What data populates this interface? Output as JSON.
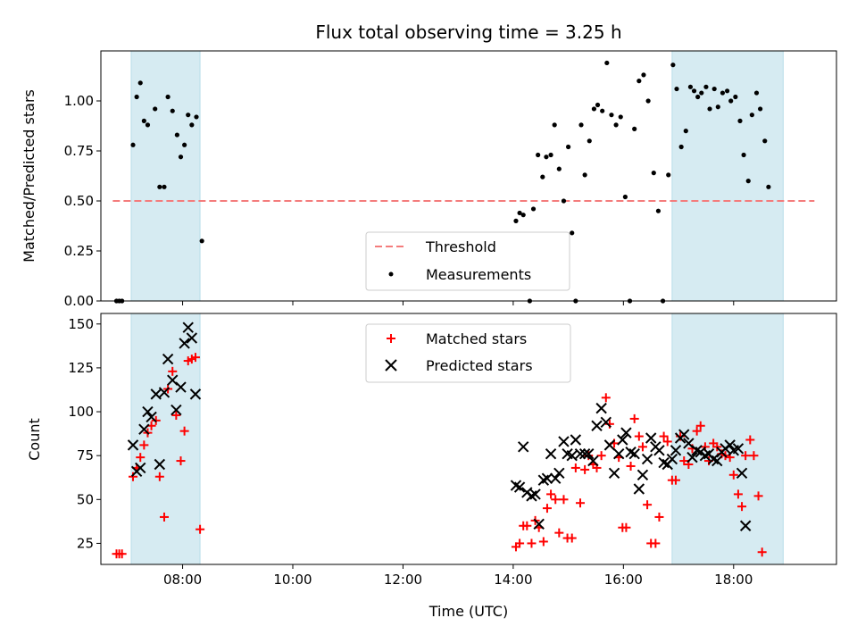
{
  "chart_data": [
    {
      "type": "scatter",
      "title": "Flux total observing time = 3.25 h",
      "xlabel": "",
      "ylabel": "Matched/Predicted stars",
      "xlim": [
        "06:31",
        "19:52"
      ],
      "ylim": [
        0,
        1.25
      ],
      "yticks": [
        0.0,
        0.25,
        0.5,
        0.75,
        1.0
      ],
      "ytick_labels": [
        "0.00",
        "0.25",
        "0.50",
        "0.75",
        "1.00"
      ],
      "xticks": [
        "08:00",
        "10:00",
        "12:00",
        "14:00",
        "16:00",
        "18:00"
      ],
      "grid": false,
      "legend_position": "bottom-center",
      "observing_windows": [
        [
          "07:04",
          "08:19"
        ],
        [
          "16:53",
          "18:54"
        ]
      ],
      "threshold": {
        "name": "Threshold",
        "value": 0.5,
        "color": "#f47c7c",
        "style": "dashed"
      },
      "series": [
        {
          "name": "Measurements",
          "color": "#000000",
          "marker": "dot",
          "points": [
            [
              "06:48",
              0.0
            ],
            [
              "06:51",
              0.0
            ],
            [
              "06:54",
              0.0
            ],
            [
              "07:06",
              0.78
            ],
            [
              "07:10",
              1.02
            ],
            [
              "07:14",
              1.09
            ],
            [
              "07:18",
              0.9
            ],
            [
              "07:22",
              0.88
            ],
            [
              "07:30",
              0.96
            ],
            [
              "07:35",
              0.57
            ],
            [
              "07:40",
              0.57
            ],
            [
              "07:44",
              1.02
            ],
            [
              "07:49",
              0.95
            ],
            [
              "07:54",
              0.83
            ],
            [
              "07:58",
              0.72
            ],
            [
              "08:02",
              0.78
            ],
            [
              "08:06",
              0.93
            ],
            [
              "08:10",
              0.88
            ],
            [
              "08:15",
              0.92
            ],
            [
              "08:21",
              0.3
            ],
            [
              "14:03",
              0.4
            ],
            [
              "14:07",
              0.44
            ],
            [
              "14:11",
              0.43
            ],
            [
              "14:18",
              0.0
            ],
            [
              "14:22",
              0.46
            ],
            [
              "14:27",
              0.73
            ],
            [
              "14:32",
              0.62
            ],
            [
              "14:36",
              0.72
            ],
            [
              "14:41",
              0.73
            ],
            [
              "14:45",
              0.88
            ],
            [
              "14:50",
              0.66
            ],
            [
              "14:55",
              0.5
            ],
            [
              "15:00",
              0.77
            ],
            [
              "15:04",
              0.34
            ],
            [
              "15:08",
              0.0
            ],
            [
              "15:14",
              0.88
            ],
            [
              "15:18",
              0.63
            ],
            [
              "15:23",
              0.8
            ],
            [
              "15:28",
              0.96
            ],
            [
              "15:32",
              0.98
            ],
            [
              "15:37",
              0.95
            ],
            [
              "15:42",
              1.19
            ],
            [
              "15:47",
              0.93
            ],
            [
              "15:52",
              0.88
            ],
            [
              "15:57",
              0.92
            ],
            [
              "16:02",
              0.52
            ],
            [
              "16:07",
              0.0
            ],
            [
              "16:12",
              0.86
            ],
            [
              "16:17",
              1.1
            ],
            [
              "16:22",
              1.13
            ],
            [
              "16:27",
              1.0
            ],
            [
              "16:33",
              0.64
            ],
            [
              "16:38",
              0.45
            ],
            [
              "16:43",
              0.0
            ],
            [
              "16:49",
              0.63
            ],
            [
              "16:54",
              1.18
            ],
            [
              "16:58",
              1.06
            ],
            [
              "17:03",
              0.77
            ],
            [
              "17:08",
              0.85
            ],
            [
              "17:13",
              1.07
            ],
            [
              "17:17",
              1.05
            ],
            [
              "17:21",
              1.02
            ],
            [
              "17:25",
              1.04
            ],
            [
              "17:30",
              1.07
            ],
            [
              "17:34",
              0.96
            ],
            [
              "17:39",
              1.06
            ],
            [
              "17:43",
              0.97
            ],
            [
              "17:48",
              1.04
            ],
            [
              "17:53",
              1.05
            ],
            [
              "17:57",
              1.0
            ],
            [
              "18:02",
              1.02
            ],
            [
              "18:07",
              0.9
            ],
            [
              "18:11",
              0.73
            ],
            [
              "18:16",
              0.6
            ],
            [
              "18:20",
              0.93
            ],
            [
              "18:25",
              1.04
            ],
            [
              "18:29",
              0.96
            ],
            [
              "18:34",
              0.8
            ],
            [
              "18:38",
              0.57
            ]
          ]
        }
      ]
    },
    {
      "type": "scatter",
      "title": "",
      "xlabel": "Time (UTC)",
      "ylabel": "Count",
      "xlim": [
        "06:31",
        "19:52"
      ],
      "ylim": [
        13,
        156
      ],
      "yticks": [
        25,
        50,
        75,
        100,
        125,
        150
      ],
      "ytick_labels": [
        "25",
        "50",
        "75",
        "100",
        "125",
        "150"
      ],
      "xticks": [
        "08:00",
        "10:00",
        "12:00",
        "14:00",
        "16:00",
        "18:00"
      ],
      "xtick_labels": [
        "08:00",
        "10:00",
        "12:00",
        "14:00",
        "16:00",
        "18:00"
      ],
      "grid": false,
      "legend_position": "top-center",
      "observing_windows": [
        [
          "07:04",
          "08:19"
        ],
        [
          "16:53",
          "18:54"
        ]
      ],
      "series": [
        {
          "name": "Matched stars",
          "color": "#ff0000",
          "marker": "plus",
          "points": [
            [
              "06:48",
              19
            ],
            [
              "06:51",
              19
            ],
            [
              "06:54",
              19
            ],
            [
              "07:06",
              63
            ],
            [
              "07:10",
              68
            ],
            [
              "07:14",
              74
            ],
            [
              "07:18",
              81
            ],
            [
              "07:22",
              88
            ],
            [
              "07:26",
              92
            ],
            [
              "07:31",
              95
            ],
            [
              "07:35",
              63
            ],
            [
              "07:40",
              40
            ],
            [
              "07:44",
              113
            ],
            [
              "07:49",
              123
            ],
            [
              "07:53",
              98
            ],
            [
              "07:58",
              72
            ],
            [
              "08:02",
              89
            ],
            [
              "08:06",
              129
            ],
            [
              "08:10",
              130
            ],
            [
              "08:14",
              131
            ],
            [
              "08:19",
              33
            ],
            [
              "14:03",
              23
            ],
            [
              "14:07",
              25
            ],
            [
              "14:11",
              35
            ],
            [
              "14:15",
              35
            ],
            [
              "14:20",
              25
            ],
            [
              "14:24",
              38
            ],
            [
              "14:28",
              34
            ],
            [
              "14:33",
              26
            ],
            [
              "14:37",
              45
            ],
            [
              "14:41",
              53
            ],
            [
              "14:46",
              50
            ],
            [
              "14:50",
              31
            ],
            [
              "14:55",
              50
            ],
            [
              "14:59",
              28
            ],
            [
              "15:04",
              28
            ],
            [
              "15:08",
              68
            ],
            [
              "15:13",
              48
            ],
            [
              "15:18",
              67
            ],
            [
              "15:22",
              75
            ],
            [
              "15:27",
              70
            ],
            [
              "15:31",
              68
            ],
            [
              "15:36",
              75
            ],
            [
              "15:41",
              108
            ],
            [
              "15:45",
              93
            ],
            [
              "15:50",
              82
            ],
            [
              "15:55",
              74
            ],
            [
              "15:59",
              34
            ],
            [
              "16:03",
              34
            ],
            [
              "16:08",
              69
            ],
            [
              "16:12",
              96
            ],
            [
              "16:17",
              86
            ],
            [
              "16:21",
              80
            ],
            [
              "16:26",
              47
            ],
            [
              "16:30",
              25
            ],
            [
              "16:35",
              25
            ],
            [
              "16:39",
              40
            ],
            [
              "16:44",
              86
            ],
            [
              "16:48",
              83
            ],
            [
              "16:53",
              61
            ],
            [
              "16:57",
              61
            ],
            [
              "17:02",
              86
            ],
            [
              "17:06",
              72
            ],
            [
              "17:11",
              70
            ],
            [
              "17:15",
              79
            ],
            [
              "17:20",
              89
            ],
            [
              "17:24",
              92
            ],
            [
              "17:29",
              80
            ],
            [
              "17:33",
              72
            ],
            [
              "17:38",
              82
            ],
            [
              "17:42",
              80
            ],
            [
              "17:47",
              76
            ],
            [
              "17:51",
              75
            ],
            [
              "17:56",
              74
            ],
            [
              "18:00",
              64
            ],
            [
              "18:05",
              53
            ],
            [
              "18:09",
              46
            ],
            [
              "18:13",
              75
            ],
            [
              "18:18",
              84
            ],
            [
              "18:22",
              75
            ],
            [
              "18:27",
              52
            ],
            [
              "18:31",
              20
            ]
          ]
        },
        {
          "name": "Predicted stars",
          "color": "#000000",
          "marker": "x",
          "points": [
            [
              "07:06",
              81
            ],
            [
              "07:10",
              66
            ],
            [
              "07:14",
              68
            ],
            [
              "07:18",
              90
            ],
            [
              "07:22",
              100
            ],
            [
              "07:26",
              97
            ],
            [
              "07:31",
              110
            ],
            [
              "07:35",
              70
            ],
            [
              "07:40",
              111
            ],
            [
              "07:44",
              130
            ],
            [
              "07:49",
              118
            ],
            [
              "07:53",
              101
            ],
            [
              "07:58",
              114
            ],
            [
              "08:02",
              139
            ],
            [
              "08:06",
              148
            ],
            [
              "08:10",
              142
            ],
            [
              "08:14",
              110
            ],
            [
              "14:03",
              58
            ],
            [
              "14:07",
              57
            ],
            [
              "14:11",
              80
            ],
            [
              "14:15",
              54
            ],
            [
              "14:20",
              52
            ],
            [
              "14:24",
              53
            ],
            [
              "14:28",
              36
            ],
            [
              "14:33",
              61
            ],
            [
              "14:37",
              62
            ],
            [
              "14:41",
              76
            ],
            [
              "14:46",
              62
            ],
            [
              "14:50",
              65
            ],
            [
              "14:55",
              83
            ],
            [
              "14:59",
              76
            ],
            [
              "15:04",
              75
            ],
            [
              "15:08",
              84
            ],
            [
              "15:13",
              76
            ],
            [
              "15:18",
              76
            ],
            [
              "15:22",
              76
            ],
            [
              "15:27",
              72
            ],
            [
              "15:31",
              92
            ],
            [
              "15:36",
              102
            ],
            [
              "15:41",
              94
            ],
            [
              "15:45",
              81
            ],
            [
              "15:50",
              65
            ],
            [
              "15:55",
              76
            ],
            [
              "15:59",
              84
            ],
            [
              "16:03",
              88
            ],
            [
              "16:08",
              77
            ],
            [
              "16:12",
              76
            ],
            [
              "16:17",
              56
            ],
            [
              "16:21",
              64
            ],
            [
              "16:26",
              73
            ],
            [
              "16:30",
              85
            ],
            [
              "16:35",
              80
            ],
            [
              "16:39",
              78
            ],
            [
              "16:44",
              71
            ],
            [
              "16:48",
              70
            ],
            [
              "16:53",
              73
            ],
            [
              "16:57",
              78
            ],
            [
              "17:02",
              85
            ],
            [
              "17:06",
              87
            ],
            [
              "17:11",
              82
            ],
            [
              "17:15",
              74
            ],
            [
              "17:20",
              78
            ],
            [
              "17:24",
              77
            ],
            [
              "17:29",
              75
            ],
            [
              "17:33",
              76
            ],
            [
              "17:38",
              73
            ],
            [
              "17:42",
              72
            ],
            [
              "17:47",
              77
            ],
            [
              "17:51",
              79
            ],
            [
              "17:56",
              81
            ],
            [
              "18:00",
              78
            ],
            [
              "18:05",
              79
            ],
            [
              "18:09",
              65
            ],
            [
              "18:13",
              35
            ]
          ]
        }
      ]
    }
  ]
}
